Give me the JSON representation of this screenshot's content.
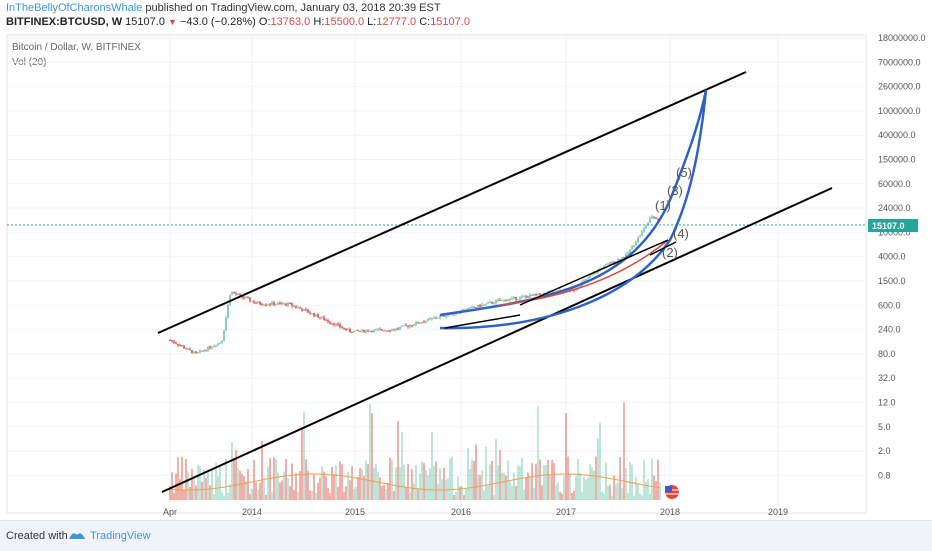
{
  "header": {
    "author": "InTheBellyOfCharonsWhale",
    "published_text": " published on TradingView.com, January 03, 2018 20:39 EST",
    "symbol": "BITFINEX:BTCUSD, W",
    "last": "15107.0",
    "change": "−43.0 (−0.28%)",
    "open_label": "O:",
    "open": "13763.0",
    "high_label": "H:",
    "high": "15500.0",
    "low_label": "L:",
    "low": "12777.0",
    "close_label": "C:",
    "close": "15107.0"
  },
  "chart_title": "Bitcoin / Dollar, W, BITFINEX",
  "volume_label": "Vol (20)",
  "footer": {
    "created_with": "Created with",
    "brand": "TradingView"
  },
  "colors": {
    "up": "#6dc2a8",
    "down": "#e0483e",
    "blue_curve": "#2f62c3",
    "channel": "#000000",
    "price_marker": "#26a69a"
  },
  "chart_data": {
    "type": "candlestick",
    "title": "Bitcoin / Dollar, W, BITFINEX",
    "y_scale": "log",
    "y_ticks": [
      "18000000.0",
      "7000000.0",
      "2600000.0",
      "1000000.0",
      "400000.0",
      "150000.0",
      "60000.0",
      "24000.0",
      "10000.0",
      "4000.0",
      "1500.0",
      "600.0",
      "240.0",
      "80.0",
      "32.0",
      "12.0",
      "5.0",
      "2.0",
      "0.8"
    ],
    "x_ticks": [
      "Apr",
      "2014",
      "2015",
      "2016",
      "2017",
      "2018",
      "2019"
    ],
    "last_price": "15107.0",
    "wave_labels": [
      "(1)",
      "(2)",
      "(3)",
      "(4)",
      "(5)"
    ],
    "price_anchors": [
      {
        "x": "2013-04",
        "y": 150
      },
      {
        "x": "2013-07",
        "y": 80
      },
      {
        "x": "2013-10",
        "y": 140
      },
      {
        "x": "2013-11",
        "y": 1000
      },
      {
        "x": "2014-02",
        "y": 650
      },
      {
        "x": "2014-06",
        "y": 620
      },
      {
        "x": "2014-10",
        "y": 350
      },
      {
        "x": "2015-01",
        "y": 220
      },
      {
        "x": "2015-06",
        "y": 240
      },
      {
        "x": "2015-11",
        "y": 380
      },
      {
        "x": "2016-06",
        "y": 700
      },
      {
        "x": "2016-12",
        "y": 950
      },
      {
        "x": "2017-03",
        "y": 1100
      },
      {
        "x": "2017-06",
        "y": 2500
      },
      {
        "x": "2017-09",
        "y": 4200
      },
      {
        "x": "2017-12",
        "y": 18000
      },
      {
        "x": "2018-01",
        "y": 15107
      }
    ],
    "channel_lines": [
      {
        "from": {
          "x": "2013-03",
          "y": 240
        },
        "to": {
          "x": "2018-08",
          "y": 7000000
        }
      },
      {
        "from": {
          "x": "2013-03",
          "y": 0.8
        },
        "to": {
          "x": "2019-06",
          "y": 40000
        }
      }
    ],
    "volume_series": "Vol (20)"
  }
}
